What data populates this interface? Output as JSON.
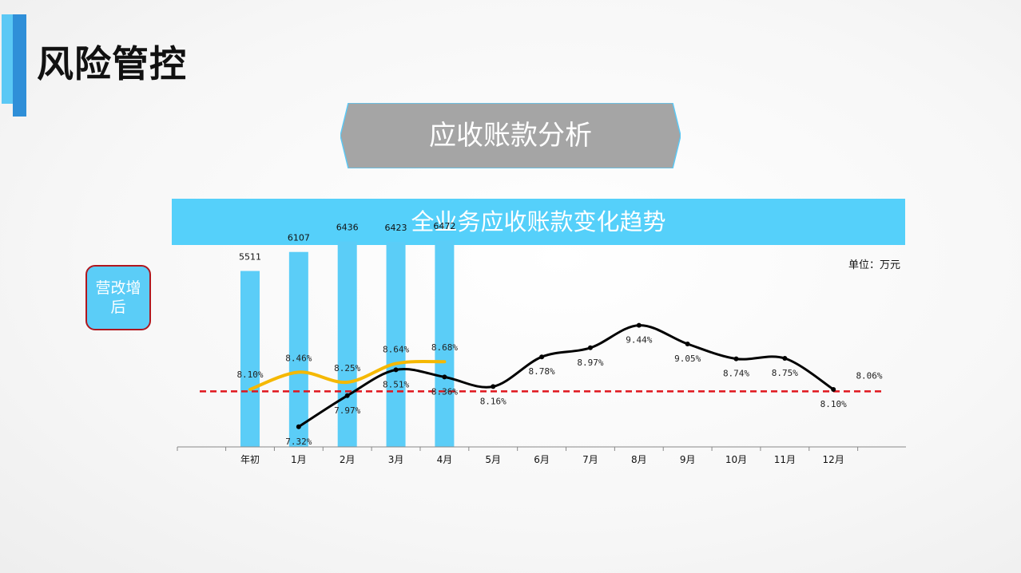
{
  "page": {
    "title": "风险管控",
    "section_title": "应收账款分析",
    "badge": "营改增后",
    "unit": "单位：万元"
  },
  "colors": {
    "accent_light": "#5bc8f5",
    "accent_dark": "#2f8fd8",
    "banner_gray": "#a5a5a5",
    "header_blue": "#55d0fa",
    "bar": "#5bcdf7",
    "line_black": "#000000",
    "line_yellow": "#f5b800",
    "ref_red": "#e0151c"
  },
  "chart_data": {
    "type": "bar",
    "title": "全业务应收账款变化趋势",
    "categories": [
      "年初",
      "1月",
      "2月",
      "3月",
      "4月",
      "5月",
      "6月",
      "7月",
      "8月",
      "9月",
      "10月",
      "11月",
      "12月"
    ],
    "bars": {
      "values": [
        5511,
        6107,
        6436,
        6423,
        6472,
        null,
        null,
        null,
        null,
        null,
        null,
        null,
        null
      ],
      "labels": [
        "5511",
        "6107",
        "6436",
        "6423",
        "6472"
      ]
    },
    "line_black": {
      "values": [
        null,
        7.32,
        7.97,
        8.51,
        8.36,
        8.16,
        8.78,
        8.97,
        9.44,
        9.05,
        8.74,
        8.75,
        8.1
      ],
      "labels": [
        "",
        "7.32%",
        "7.97%",
        "8.51%",
        "8.36%",
        "8.16%",
        "8.78%",
        "8.97%",
        "9.44%",
        "9.05%",
        "8.74%",
        "8.75%",
        "8.10%"
      ]
    },
    "line_yellow": {
      "values": [
        8.1,
        8.46,
        8.25,
        8.64,
        8.68,
        null,
        null,
        null,
        null,
        null,
        null,
        null,
        null
      ],
      "labels": [
        "8.10%",
        "8.46%",
        "8.25%",
        "8.64%",
        "8.68%"
      ]
    },
    "reference_line": {
      "value": 8.06,
      "label": "8.06%"
    },
    "bar_ylim": [
      0,
      7000
    ],
    "pct_ylim": [
      6.9,
      9.9
    ]
  }
}
